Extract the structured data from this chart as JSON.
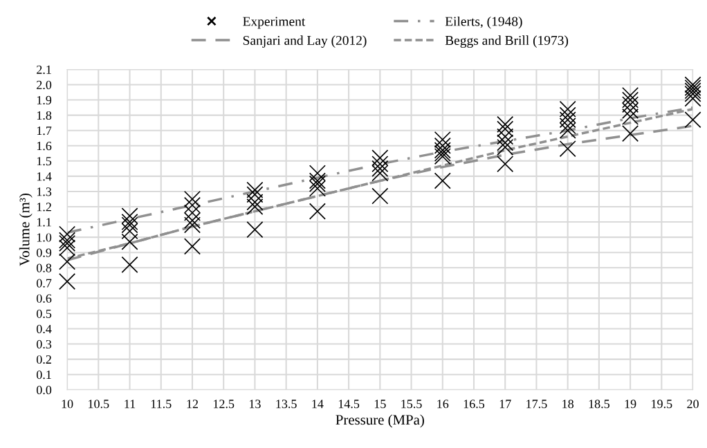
{
  "chart_data": {
    "type": "scatter",
    "xlabel": "Pressure (MPa)",
    "ylabel": "Volume (m³)",
    "series": [
      {
        "name": "Experiment",
        "marker": "cross",
        "color": "#000000",
        "x": [
          10,
          10,
          10,
          10,
          10,
          10,
          11,
          11,
          11,
          11,
          11,
          11,
          12,
          12,
          12,
          12,
          12,
          12,
          13,
          13,
          13,
          13,
          13,
          14,
          14,
          14,
          14,
          14,
          15,
          15,
          15,
          15,
          15,
          16,
          16,
          16,
          16,
          16,
          16,
          17,
          17,
          17,
          17,
          17,
          17,
          18,
          18,
          18,
          18,
          18,
          18,
          19,
          19,
          19,
          19,
          19,
          19,
          20,
          20,
          20,
          20,
          20,
          20
        ],
        "values": [
          0.71,
          0.84,
          0.93,
          0.96,
          0.98,
          1.02,
          0.82,
          0.97,
          1.04,
          1.08,
          1.1,
          1.14,
          0.94,
          1.08,
          1.11,
          1.16,
          1.21,
          1.25,
          1.05,
          1.2,
          1.23,
          1.28,
          1.31,
          1.17,
          1.32,
          1.35,
          1.37,
          1.42,
          1.27,
          1.42,
          1.45,
          1.48,
          1.52,
          1.37,
          1.53,
          1.55,
          1.57,
          1.6,
          1.64,
          1.48,
          1.59,
          1.62,
          1.66,
          1.71,
          1.74,
          1.58,
          1.7,
          1.73,
          1.77,
          1.8,
          1.84,
          1.68,
          1.79,
          1.83,
          1.87,
          1.9,
          1.93,
          1.77,
          1.91,
          1.94,
          1.96,
          1.98,
          2.0
        ]
      },
      {
        "name": "Eilerts, (1948)",
        "type": "line",
        "line_style": "dashdot",
        "color": "#909090",
        "x": [
          10,
          11,
          12,
          13,
          14,
          15,
          16,
          17,
          18,
          19,
          20
        ],
        "values": [
          1.03,
          1.12,
          1.21,
          1.3,
          1.39,
          1.48,
          1.56,
          1.63,
          1.7,
          1.78,
          1.85
        ]
      },
      {
        "name": "Sanjari and Lay (2012)",
        "type": "line",
        "line_style": "dashed",
        "color": "#909090",
        "x": [
          10,
          11,
          12,
          13,
          14,
          15,
          16,
          17,
          18,
          19,
          20
        ],
        "values": [
          0.85,
          0.96,
          1.07,
          1.17,
          1.27,
          1.37,
          1.46,
          1.54,
          1.61,
          1.67,
          1.73
        ]
      },
      {
        "name": "Beggs and Brill (1973)",
        "type": "line",
        "line_style": "dotted",
        "color": "#909090",
        "x": [
          10,
          11,
          12,
          13,
          14,
          15,
          16,
          17,
          18,
          19,
          20
        ],
        "values": [
          0.86,
          0.96,
          1.07,
          1.17,
          1.27,
          1.37,
          1.47,
          1.57,
          1.66,
          1.75,
          1.84
        ]
      }
    ],
    "xlim": [
      10,
      20
    ],
    "xticks": [
      10,
      10.5,
      11,
      11.5,
      12,
      12.5,
      13,
      13.5,
      14,
      14.5,
      15,
      15.5,
      16,
      16.5,
      17,
      17.5,
      18,
      18.5,
      19,
      19.5,
      20
    ],
    "ylim": [
      0,
      2.1
    ],
    "yticks": [
      {
        "value": 0,
        "label": "0.0"
      },
      0.1,
      0.2,
      0.3,
      0.4,
      0.5,
      0.6,
      0.7,
      0.8,
      0.9,
      {
        "value": 1,
        "label": "1.0"
      },
      1.1,
      1.2,
      1.3,
      1.4,
      1.5,
      1.6,
      1.7,
      1.8,
      1.9,
      {
        "value": 2,
        "label": "2.0"
      },
      2.1
    ],
    "grid": true,
    "legend": "top"
  }
}
